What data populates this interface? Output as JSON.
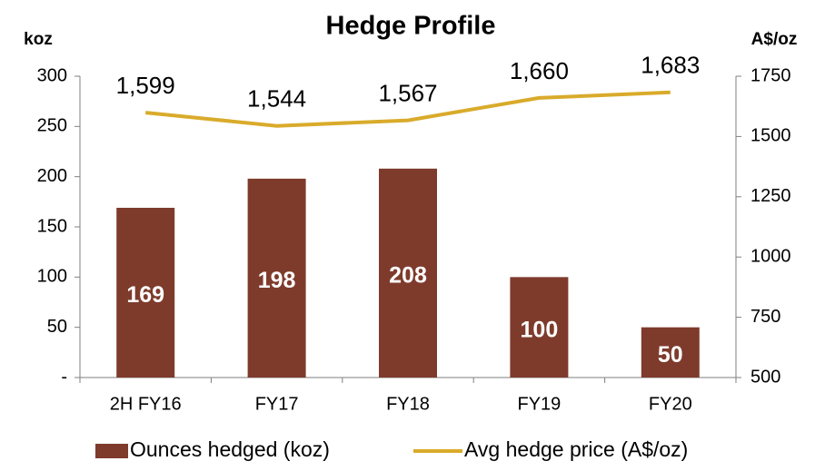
{
  "chart_data": {
    "type": "bar",
    "title": "Hedge Profile",
    "ylabel": "koz",
    "y2label": "A$/oz",
    "categories": [
      "2H FY16",
      "FY17",
      "FY18",
      "FY19",
      "FY20"
    ],
    "series": [
      {
        "name": "Ounces hedged (koz)",
        "type": "bar",
        "color": "#7e3b2c",
        "values": [
          169,
          198,
          208,
          100,
          50
        ]
      },
      {
        "name": "Avg hedge price (A$/oz)",
        "type": "line",
        "color": "#d9ab2b",
        "axis": "y2",
        "values": [
          1599,
          1544,
          1567,
          1660,
          1683
        ],
        "value_labels": [
          "1,599",
          "1,544",
          "1,567",
          "1,660",
          "1,683"
        ]
      }
    ],
    "ylim": [
      0,
      300
    ],
    "yticks": [
      {
        "value": 0,
        "label": "-"
      },
      50,
      100,
      150,
      200,
      250,
      300
    ],
    "y2lim": [
      500,
      1750
    ],
    "y2ticks": [
      500,
      750,
      1000,
      1250,
      1500,
      1750
    ],
    "grid": false,
    "legend": "bottom"
  }
}
